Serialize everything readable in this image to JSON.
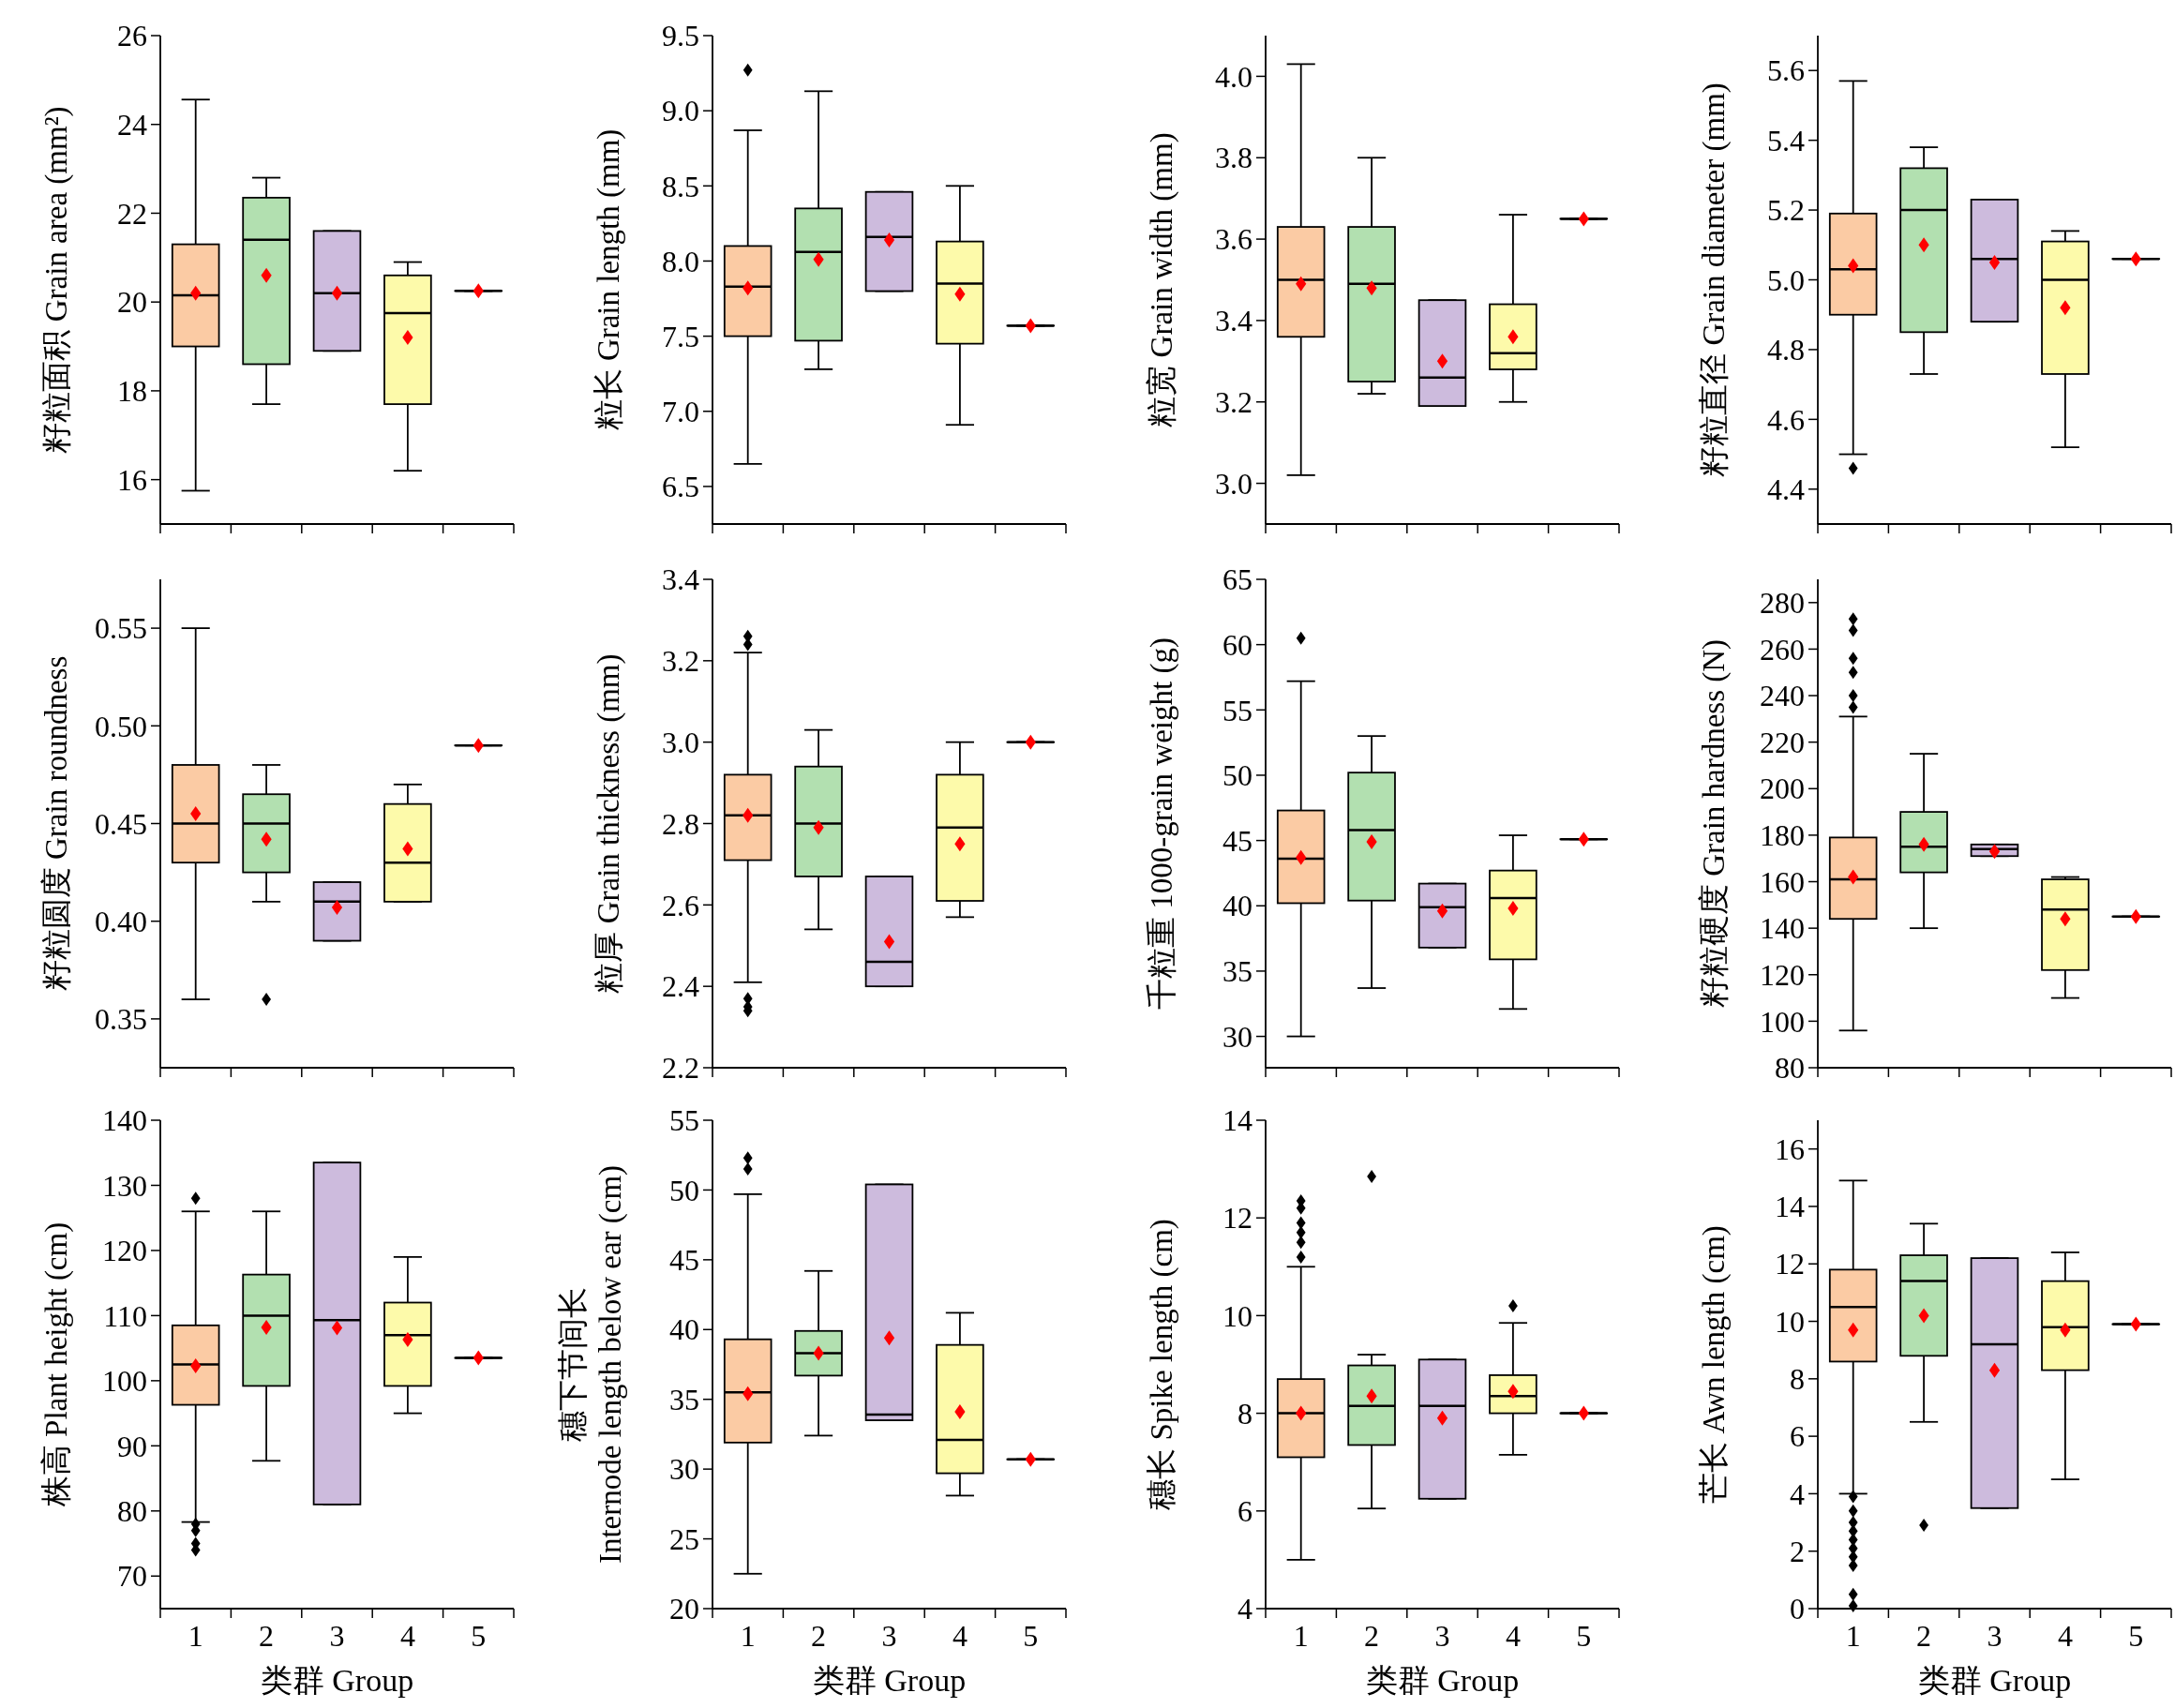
{
  "chart_data": [
    {
      "type": "box",
      "ylabel": "籽粒面积 Grain area (mm²)",
      "categories": [
        null,
        null,
        null,
        null,
        null
      ],
      "ylim": [
        15,
        26
      ],
      "yticks": [
        16,
        18,
        20,
        22,
        24,
        26
      ],
      "colors": [
        "#fbcba4",
        "#b2e0b0",
        "#cdbbdd",
        "#fdfaaa",
        "#ffffff"
      ],
      "boxes": [
        {
          "low": 15.75,
          "q1": 19.0,
          "median": 20.15,
          "q3": 21.3,
          "high": 24.56,
          "mean": 20.2
        },
        {
          "low": 17.7,
          "q1": 18.6,
          "median": 21.4,
          "q3": 22.35,
          "high": 22.8,
          "mean": 20.6
        },
        {
          "low": 18.9,
          "q1": 18.9,
          "median": 20.2,
          "q3": 21.6,
          "high": 21.6,
          "mean": 20.2
        },
        {
          "low": 16.2,
          "q1": 17.7,
          "median": 19.75,
          "q3": 20.6,
          "high": 20.9,
          "mean": 19.2
        },
        {
          "low": 20.25,
          "q1": 20.25,
          "median": 20.25,
          "q3": 20.25,
          "high": 20.25,
          "mean": 20.25
        }
      ]
    },
    {
      "type": "box",
      "ylabel": "粒长 Grain length (mm)",
      "categories": [
        null,
        null,
        null,
        null,
        null
      ],
      "ylim": [
        6.25,
        9.5
      ],
      "yticks": [
        6.5,
        {
          "value": 7,
          "label": "7.0"
        },
        7.5,
        {
          "value": 8,
          "label": "8.0"
        },
        8.5,
        {
          "value": 9,
          "label": "9.0"
        },
        9.5
      ],
      "colors": [
        "#fbcba4",
        "#b2e0b0",
        "#cdbbdd",
        "#fdfaaa",
        "#ffffff"
      ],
      "boxes": [
        {
          "low": 6.65,
          "q1": 7.5,
          "median": 7.83,
          "q3": 8.1,
          "high": 8.87,
          "mean": 7.82,
          "outliers": [
            9.27
          ]
        },
        {
          "low": 7.28,
          "q1": 7.47,
          "median": 8.06,
          "q3": 8.35,
          "high": 9.13,
          "mean": 8.01
        },
        {
          "low": 7.8,
          "q1": 7.8,
          "median": 8.16,
          "q3": 8.46,
          "high": 8.46,
          "mean": 8.14
        },
        {
          "low": 6.91,
          "q1": 7.45,
          "median": 7.85,
          "q3": 8.13,
          "high": 8.5,
          "mean": 7.78
        },
        {
          "low": 7.57,
          "q1": 7.57,
          "median": 7.57,
          "q3": 7.57,
          "high": 7.57,
          "mean": 7.57
        }
      ]
    },
    {
      "type": "box",
      "ylabel": "粒宽 Grain width (mm)",
      "categories": [
        null,
        null,
        null,
        null,
        null
      ],
      "ylim": [
        2.9,
        4.1
      ],
      "yticks": [
        {
          "value": 3,
          "label": "3.0"
        },
        3.2,
        3.4,
        3.6,
        3.8,
        {
          "value": 4,
          "label": "4.0"
        }
      ],
      "colors": [
        "#fbcba4",
        "#b2e0b0",
        "#cdbbdd",
        "#fdfaaa",
        "#ffffff"
      ],
      "boxes": [
        {
          "low": 3.02,
          "q1": 3.36,
          "median": 3.5,
          "q3": 3.63,
          "high": 4.03,
          "mean": 3.49
        },
        {
          "low": 3.22,
          "q1": 3.25,
          "median": 3.49,
          "q3": 3.63,
          "high": 3.8,
          "mean": 3.48
        },
        {
          "low": 3.19,
          "q1": 3.19,
          "median": 3.26,
          "q3": 3.45,
          "high": 3.45,
          "mean": 3.3
        },
        {
          "low": 3.2,
          "q1": 3.28,
          "median": 3.32,
          "q3": 3.44,
          "high": 3.66,
          "mean": 3.36
        },
        {
          "low": 3.65,
          "q1": 3.65,
          "median": 3.65,
          "q3": 3.65,
          "high": 3.65,
          "mean": 3.65
        }
      ]
    },
    {
      "type": "box",
      "ylabel": "籽粒直径 Grain diameter (mm)",
      "categories": [
        null,
        null,
        null,
        null,
        null
      ],
      "ylim": [
        4.3,
        5.7
      ],
      "yticks": [
        4.4,
        4.6,
        4.8,
        {
          "value": 5,
          "label": "5.0"
        },
        5.2,
        5.4,
        5.6
      ],
      "colors": [
        "#fbcba4",
        "#b2e0b0",
        "#cdbbdd",
        "#fdfaaa",
        "#ffffff"
      ],
      "boxes": [
        {
          "low": 4.5,
          "q1": 4.9,
          "median": 5.03,
          "q3": 5.19,
          "high": 5.57,
          "mean": 5.04,
          "outliers": [
            4.46
          ]
        },
        {
          "low": 4.73,
          "q1": 4.85,
          "median": 5.2,
          "q3": 5.32,
          "high": 5.38,
          "mean": 5.1
        },
        {
          "low": 4.88,
          "q1": 4.88,
          "median": 5.06,
          "q3": 5.23,
          "high": 5.23,
          "mean": 5.05
        },
        {
          "low": 4.52,
          "q1": 4.73,
          "median": 5.0,
          "q3": 5.11,
          "high": 5.14,
          "mean": 4.92
        },
        {
          "low": 5.06,
          "q1": 5.06,
          "median": 5.06,
          "q3": 5.06,
          "high": 5.06,
          "mean": 5.06
        }
      ]
    },
    {
      "type": "box",
      "ylabel": "籽粒圆度 Grain roundness",
      "categories": [
        null,
        null,
        null,
        null,
        null
      ],
      "ylim": [
        0.325,
        0.575
      ],
      "yticks": [
        {
          "value": 0.35,
          "label": "0.35"
        },
        {
          "value": 0.4,
          "label": "0.40"
        },
        {
          "value": 0.45,
          "label": "0.45"
        },
        {
          "value": 0.5,
          "label": "0.50"
        },
        {
          "value": 0.55,
          "label": "0.55"
        }
      ],
      "colors": [
        "#fbcba4",
        "#b2e0b0",
        "#cdbbdd",
        "#fdfaaa",
        "#ffffff"
      ],
      "boxes": [
        {
          "low": 0.36,
          "q1": 0.43,
          "median": 0.45,
          "q3": 0.48,
          "high": 0.55,
          "mean": 0.455
        },
        {
          "low": 0.41,
          "q1": 0.425,
          "median": 0.45,
          "q3": 0.465,
          "high": 0.48,
          "mean": 0.442,
          "outliers": [
            0.36
          ]
        },
        {
          "low": 0.39,
          "q1": 0.39,
          "median": 0.41,
          "q3": 0.42,
          "high": 0.42,
          "mean": 0.407
        },
        {
          "low": 0.41,
          "q1": 0.41,
          "median": 0.43,
          "q3": 0.46,
          "high": 0.47,
          "mean": 0.437
        },
        {
          "low": 0.49,
          "q1": 0.49,
          "median": 0.49,
          "q3": 0.49,
          "high": 0.49,
          "mean": 0.49
        }
      ]
    },
    {
      "type": "box",
      "ylabel": "粒厚 Grain thickness (mm)",
      "categories": [
        null,
        null,
        null,
        null,
        null
      ],
      "ylim": [
        2.2,
        3.4
      ],
      "yticks": [
        2.2,
        2.4,
        2.6,
        2.8,
        {
          "value": 3,
          "label": "3.0"
        },
        3.2,
        3.4
      ],
      "colors": [
        "#fbcba4",
        "#b2e0b0",
        "#cdbbdd",
        "#fdfaaa",
        "#ffffff"
      ],
      "boxes": [
        {
          "low": 2.41,
          "q1": 2.71,
          "median": 2.82,
          "q3": 2.92,
          "high": 3.22,
          "mean": 2.82,
          "outliers": [
            3.26,
            3.24,
            2.37,
            2.35,
            2.34
          ]
        },
        {
          "low": 2.54,
          "q1": 2.67,
          "median": 2.8,
          "q3": 2.94,
          "high": 3.03,
          "mean": 2.79
        },
        {
          "low": 2.4,
          "q1": 2.4,
          "median": 2.46,
          "q3": 2.67,
          "high": 2.67,
          "mean": 2.51
        },
        {
          "low": 2.57,
          "q1": 2.61,
          "median": 2.79,
          "q3": 2.92,
          "high": 3.0,
          "mean": 2.75
        },
        {
          "low": 3.0,
          "q1": 3.0,
          "median": 3.0,
          "q3": 3.0,
          "high": 3.0,
          "mean": 3.0
        }
      ]
    },
    {
      "type": "box",
      "ylabel": "千粒重 1000-grain weight (g)",
      "categories": [
        null,
        null,
        null,
        null,
        null
      ],
      "ylim": [
        27.6,
        65
      ],
      "yticks": [
        30,
        35,
        40,
        45,
        50,
        55,
        60,
        65
      ],
      "colors": [
        "#fbcba4",
        "#b2e0b0",
        "#cdbbdd",
        "#fdfaaa",
        "#ffffff"
      ],
      "boxes": [
        {
          "low": 30,
          "q1": 40.2,
          "median": 43.6,
          "q3": 47.3,
          "high": 57.2,
          "mean": 43.7,
          "outliers": [
            60.5
          ]
        },
        {
          "low": 33.7,
          "q1": 40.4,
          "median": 45.8,
          "q3": 50.2,
          "high": 53,
          "mean": 44.9
        },
        {
          "low": 36.8,
          "q1": 36.8,
          "median": 39.9,
          "q3": 41.7,
          "high": 41.7,
          "mean": 39.6
        },
        {
          "low": 32.1,
          "q1": 35.9,
          "median": 40.6,
          "q3": 42.7,
          "high": 45.4,
          "mean": 39.8
        },
        {
          "low": 45.1,
          "q1": 45.1,
          "median": 45.1,
          "q3": 45.1,
          "high": 45.1,
          "mean": 45.1
        }
      ]
    },
    {
      "type": "box",
      "ylabel": "籽粒硬度 Grain hardness (N)",
      "categories": [
        null,
        null,
        null,
        null,
        null
      ],
      "ylim": [
        80,
        290
      ],
      "yticks": [
        80,
        100,
        120,
        140,
        160,
        180,
        200,
        220,
        240,
        260,
        280
      ],
      "colors": [
        "#fbcba4",
        "#b2e0b0",
        "#cdbbdd",
        "#fdfaaa",
        "#ffffff"
      ],
      "boxes": [
        {
          "low": 96,
          "q1": 144,
          "median": 161,
          "q3": 179,
          "high": 231,
          "mean": 162,
          "outliers": [
            273,
            268,
            256,
            250,
            240,
            235
          ]
        },
        {
          "low": 140,
          "q1": 164,
          "median": 175,
          "q3": 190,
          "high": 215,
          "mean": 176
        },
        {
          "low": 171,
          "q1": 171,
          "median": 174,
          "q3": 176,
          "high": 176,
          "mean": 173
        },
        {
          "low": 110,
          "q1": 122,
          "median": 148,
          "q3": 161,
          "high": 162,
          "mean": 144
        },
        {
          "low": 145,
          "q1": 145,
          "median": 145,
          "q3": 145,
          "high": 145,
          "mean": 145
        }
      ]
    },
    {
      "type": "box",
      "ylabel": "株高 Plant height (cm)",
      "xlabel": "类群 Group",
      "categories": [
        "1",
        "2",
        "3",
        "4",
        "5"
      ],
      "ylim": [
        65,
        140
      ],
      "yticks": [
        70,
        80,
        90,
        100,
        110,
        120,
        130,
        140
      ],
      "colors": [
        "#fbcba4",
        "#b2e0b0",
        "#cdbbdd",
        "#fdfaaa",
        "#ffffff"
      ],
      "boxes": [
        {
          "low": 78.3,
          "q1": 96.3,
          "median": 102.5,
          "q3": 108.5,
          "high": 126,
          "mean": 102.3,
          "outliers": [
            128,
            78,
            77,
            75,
            74
          ]
        },
        {
          "low": 87.7,
          "q1": 99.2,
          "median": 110,
          "q3": 116.3,
          "high": 126,
          "mean": 108.2
        },
        {
          "low": 81,
          "q1": 81,
          "median": 109.3,
          "q3": 133.5,
          "high": 133.5,
          "mean": 108.1
        },
        {
          "low": 95,
          "q1": 99.2,
          "median": 107,
          "q3": 112,
          "high": 119,
          "mean": 106.3
        },
        {
          "low": 103.5,
          "q1": 103.5,
          "median": 103.5,
          "q3": 103.5,
          "high": 103.5,
          "mean": 103.5
        }
      ]
    },
    {
      "type": "box",
      "ylabel": "穗下节间长 Internode length below ear (cm)",
      "xlabel": "类群 Group",
      "categories": [
        "1",
        "2",
        "3",
        "4",
        "5"
      ],
      "ylim": [
        20,
        55
      ],
      "yticks": [
        20,
        25,
        30,
        35,
        40,
        45,
        50,
        55
      ],
      "colors": [
        "#fbcba4",
        "#b2e0b0",
        "#cdbbdd",
        "#fdfaaa",
        "#ffffff"
      ],
      "boxes": [
        {
          "low": 22.5,
          "q1": 31.9,
          "median": 35.5,
          "q3": 39.3,
          "high": 49.7,
          "mean": 35.4,
          "outliers": [
            52.3,
            51.5
          ]
        },
        {
          "low": 32.4,
          "q1": 36.7,
          "median": 38.3,
          "q3": 39.9,
          "high": 44.2,
          "mean": 38.3
        },
        {
          "low": 33.5,
          "q1": 33.5,
          "median": 33.9,
          "q3": 50.4,
          "high": 50.4,
          "mean": 39.4
        },
        {
          "low": 28.1,
          "q1": 29.7,
          "median": 32.1,
          "q3": 38.9,
          "high": 41.2,
          "mean": 34.1
        },
        {
          "low": 30.7,
          "q1": 30.7,
          "median": 30.7,
          "q3": 30.7,
          "high": 30.7,
          "mean": 30.7
        }
      ]
    },
    {
      "type": "box",
      "ylabel": "穗长 Spike length (cm)",
      "xlabel": "类群 Group",
      "categories": [
        "1",
        "2",
        "3",
        "4",
        "5"
      ],
      "ylim": [
        4,
        14
      ],
      "yticks": [
        4,
        6,
        8,
        10,
        12,
        14
      ],
      "colors": [
        "#fbcba4",
        "#b2e0b0",
        "#cdbbdd",
        "#fdfaaa",
        "#ffffff"
      ],
      "boxes": [
        {
          "low": 5.0,
          "q1": 7.1,
          "median": 8.0,
          "q3": 8.7,
          "high": 11,
          "mean": 8.0,
          "outliers": [
            12.35,
            12.2,
            11.9,
            11.7,
            11.5,
            11.2
          ]
        },
        {
          "low": 6.05,
          "q1": 7.35,
          "median": 8.15,
          "q3": 8.98,
          "high": 9.2,
          "mean": 8.35,
          "outliers": [
            12.85
          ]
        },
        {
          "low": 6.25,
          "q1": 6.25,
          "median": 8.15,
          "q3": 9.1,
          "high": 9.1,
          "mean": 7.9
        },
        {
          "low": 7.15,
          "q1": 8.0,
          "median": 8.35,
          "q3": 8.78,
          "high": 9.85,
          "mean": 8.45,
          "outliers": [
            10.2
          ]
        },
        {
          "low": 8.0,
          "q1": 8.0,
          "median": 8.0,
          "q3": 8.0,
          "high": 8.0,
          "mean": 8.0
        }
      ]
    },
    {
      "type": "box",
      "ylabel": "芒长 Awn length (cm)",
      "xlabel": "类群 Group",
      "categories": [
        "1",
        "2",
        "3",
        "4",
        "5"
      ],
      "ylim": [
        0,
        17
      ],
      "yticks": [
        0,
        2,
        4,
        6,
        8,
        10,
        12,
        14,
        16
      ],
      "colors": [
        "#fbcba4",
        "#b2e0b0",
        "#cdbbdd",
        "#fdfaaa",
        "#ffffff"
      ],
      "boxes": [
        {
          "low": 4.0,
          "q1": 8.6,
          "median": 10.5,
          "q3": 11.8,
          "high": 14.9,
          "mean": 9.7,
          "outliers": [
            3.9,
            3.4,
            3.0,
            2.7,
            2.4,
            2.1,
            1.8,
            1.5,
            0.5,
            0.1
          ]
        },
        {
          "low": 6.5,
          "q1": 8.8,
          "median": 11.4,
          "q3": 12.3,
          "high": 13.4,
          "mean": 10.2,
          "outliers": [
            2.9
          ]
        },
        {
          "low": 3.5,
          "q1": 3.5,
          "median": 9.2,
          "q3": 12.2,
          "high": 12.2,
          "mean": 8.3
        },
        {
          "low": 4.5,
          "q1": 8.3,
          "median": 9.8,
          "q3": 11.4,
          "high": 12.4,
          "mean": 9.7
        },
        {
          "low": 9.9,
          "q1": 9.9,
          "median": 9.9,
          "q3": 9.9,
          "high": 9.9,
          "mean": 9.9
        }
      ]
    }
  ]
}
